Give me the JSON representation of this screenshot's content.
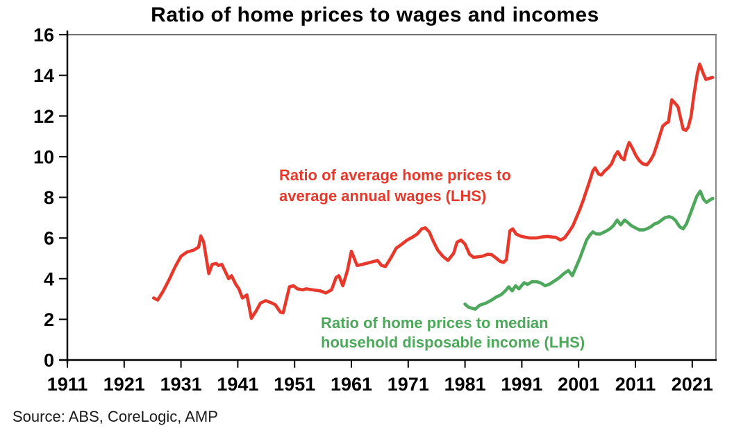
{
  "title": "Ratio of home prices to wages and incomes",
  "source": "Source: ABS, CoreLogic, AMP",
  "annotations": {
    "red": {
      "line1": "Ratio of average home prices to",
      "line2": "average annual wages (LHS)"
    },
    "green": {
      "line1": "Ratio of home prices to median",
      "line2": "household disposable income (LHS)"
    }
  },
  "colors": {
    "red_series": "#e6392c",
    "green_series": "#4da85c",
    "axis": "#000000",
    "frame_top": "#404040",
    "frame_right": "#8a8a8a",
    "text": "#000000"
  },
  "chart_data": {
    "type": "line",
    "title": "Ratio of home prices to wages and incomes",
    "xlabel": "",
    "ylabel": "",
    "grid": false,
    "legend_position": "inline-annotations",
    "x_axis": {
      "min": 1911,
      "max": 2025.3,
      "ticks": [
        1911,
        1921,
        1931,
        1941,
        1951,
        1961,
        1971,
        1981,
        1991,
        2001,
        2011,
        2021
      ]
    },
    "y_axis": {
      "min": 0,
      "max": 16,
      "ticks": [
        0,
        2,
        4,
        6,
        8,
        10,
        12,
        14,
        16
      ]
    },
    "series": [
      {
        "name": "Ratio of average home prices to average annual wages (LHS)",
        "color": "#e6392c",
        "points": [
          [
            1926.2,
            3.05
          ],
          [
            1926.9,
            2.95
          ],
          [
            1927.9,
            3.4
          ],
          [
            1929.0,
            4.0
          ],
          [
            1930.0,
            4.6
          ],
          [
            1931.0,
            5.1
          ],
          [
            1932.0,
            5.3
          ],
          [
            1933.2,
            5.4
          ],
          [
            1934.1,
            5.55
          ],
          [
            1934.5,
            6.1
          ],
          [
            1935.0,
            5.8
          ],
          [
            1935.9,
            4.25
          ],
          [
            1936.5,
            4.7
          ],
          [
            1937.2,
            4.75
          ],
          [
            1937.6,
            4.65
          ],
          [
            1938.2,
            4.7
          ],
          [
            1938.8,
            4.35
          ],
          [
            1939.4,
            4.0
          ],
          [
            1939.9,
            4.15
          ],
          [
            1940.6,
            3.75
          ],
          [
            1941.2,
            3.5
          ],
          [
            1941.8,
            3.05
          ],
          [
            1942.6,
            3.2
          ],
          [
            1943.4,
            2.05
          ],
          [
            1944.2,
            2.4
          ],
          [
            1945.0,
            2.8
          ],
          [
            1945.9,
            2.92
          ],
          [
            1947.0,
            2.8
          ],
          [
            1947.6,
            2.72
          ],
          [
            1948.5,
            2.35
          ],
          [
            1949.0,
            2.32
          ],
          [
            1950.1,
            3.6
          ],
          [
            1950.8,
            3.65
          ],
          [
            1951.5,
            3.5
          ],
          [
            1952.4,
            3.45
          ],
          [
            1953.0,
            3.5
          ],
          [
            1954.2,
            3.45
          ],
          [
            1955.5,
            3.4
          ],
          [
            1956.5,
            3.3
          ],
          [
            1957.5,
            3.45
          ],
          [
            1958.3,
            4.05
          ],
          [
            1958.8,
            4.15
          ],
          [
            1959.5,
            3.65
          ],
          [
            1960.3,
            4.4
          ],
          [
            1961.0,
            5.35
          ],
          [
            1962.0,
            4.65
          ],
          [
            1962.9,
            4.7
          ],
          [
            1964.0,
            4.78
          ],
          [
            1965.0,
            4.85
          ],
          [
            1965.6,
            4.9
          ],
          [
            1966.3,
            4.65
          ],
          [
            1967.0,
            4.6
          ],
          [
            1968.0,
            5.05
          ],
          [
            1968.9,
            5.5
          ],
          [
            1969.8,
            5.68
          ],
          [
            1970.8,
            5.9
          ],
          [
            1971.8,
            6.05
          ],
          [
            1972.6,
            6.2
          ],
          [
            1973.4,
            6.45
          ],
          [
            1974.0,
            6.5
          ],
          [
            1974.7,
            6.3
          ],
          [
            1975.4,
            5.85
          ],
          [
            1976.2,
            5.4
          ],
          [
            1977.1,
            5.1
          ],
          [
            1978.0,
            4.9
          ],
          [
            1979.0,
            5.25
          ],
          [
            1979.6,
            5.8
          ],
          [
            1980.3,
            5.9
          ],
          [
            1981.0,
            5.7
          ],
          [
            1981.8,
            5.2
          ],
          [
            1982.5,
            5.05
          ],
          [
            1984.0,
            5.1
          ],
          [
            1985.0,
            5.2
          ],
          [
            1985.7,
            5.18
          ],
          [
            1986.3,
            5.05
          ],
          [
            1987.2,
            4.85
          ],
          [
            1987.8,
            4.8
          ],
          [
            1988.3,
            4.95
          ],
          [
            1988.9,
            6.35
          ],
          [
            1989.4,
            6.45
          ],
          [
            1990.0,
            6.2
          ],
          [
            1990.7,
            6.1
          ],
          [
            1991.5,
            6.05
          ],
          [
            1992.4,
            6.0
          ],
          [
            1993.5,
            6.0
          ],
          [
            1994.5,
            6.05
          ],
          [
            1995.5,
            6.08
          ],
          [
            1996.3,
            6.05
          ],
          [
            1997.0,
            6.03
          ],
          [
            1997.8,
            5.9
          ],
          [
            1998.5,
            6.0
          ],
          [
            1999.3,
            6.3
          ],
          [
            2000.0,
            6.6
          ],
          [
            2000.6,
            7.0
          ],
          [
            2001.2,
            7.4
          ],
          [
            2001.8,
            7.85
          ],
          [
            2002.4,
            8.35
          ],
          [
            2003.0,
            8.85
          ],
          [
            2003.5,
            9.3
          ],
          [
            2003.9,
            9.45
          ],
          [
            2004.5,
            9.15
          ],
          [
            2005.0,
            9.1
          ],
          [
            2005.6,
            9.3
          ],
          [
            2006.2,
            9.45
          ],
          [
            2006.8,
            9.65
          ],
          [
            2007.4,
            10.05
          ],
          [
            2007.9,
            10.25
          ],
          [
            2008.5,
            9.95
          ],
          [
            2009.0,
            9.85
          ],
          [
            2009.4,
            10.3
          ],
          [
            2009.9,
            10.7
          ],
          [
            2010.5,
            10.4
          ],
          [
            2011.1,
            10.05
          ],
          [
            2011.7,
            9.8
          ],
          [
            2012.3,
            9.65
          ],
          [
            2013.0,
            9.6
          ],
          [
            2013.6,
            9.8
          ],
          [
            2014.2,
            10.1
          ],
          [
            2014.8,
            10.6
          ],
          [
            2015.3,
            11.05
          ],
          [
            2015.8,
            11.5
          ],
          [
            2016.4,
            11.65
          ],
          [
            2016.8,
            11.7
          ],
          [
            2017.4,
            12.8
          ],
          [
            2017.9,
            12.65
          ],
          [
            2018.5,
            12.45
          ],
          [
            2019.4,
            11.35
          ],
          [
            2019.9,
            11.3
          ],
          [
            2020.3,
            11.45
          ],
          [
            2020.8,
            12.0
          ],
          [
            2021.3,
            13.05
          ],
          [
            2021.9,
            14.1
          ],
          [
            2022.3,
            14.55
          ],
          [
            2023.0,
            14.05
          ],
          [
            2023.4,
            13.8
          ],
          [
            2024.0,
            13.85
          ],
          [
            2024.6,
            13.9
          ]
        ]
      },
      {
        "name": "Ratio of home prices to median household disposable income (LHS)",
        "color": "#4da85c",
        "points": [
          [
            1981.0,
            2.75
          ],
          [
            1981.6,
            2.6
          ],
          [
            1982.2,
            2.55
          ],
          [
            1982.8,
            2.5
          ],
          [
            1983.6,
            2.7
          ],
          [
            1984.7,
            2.8
          ],
          [
            1985.7,
            2.95
          ],
          [
            1986.5,
            3.1
          ],
          [
            1987.3,
            3.2
          ],
          [
            1988.1,
            3.4
          ],
          [
            1988.7,
            3.6
          ],
          [
            1989.3,
            3.4
          ],
          [
            1989.9,
            3.65
          ],
          [
            1990.5,
            3.5
          ],
          [
            1991.4,
            3.8
          ],
          [
            1992.0,
            3.72
          ],
          [
            1992.8,
            3.85
          ],
          [
            1993.6,
            3.85
          ],
          [
            1994.4,
            3.78
          ],
          [
            1995.1,
            3.65
          ],
          [
            1996.0,
            3.75
          ],
          [
            1996.8,
            3.9
          ],
          [
            1997.6,
            4.05
          ],
          [
            1998.4,
            4.25
          ],
          [
            1999.2,
            4.4
          ],
          [
            1999.9,
            4.15
          ],
          [
            2000.6,
            4.6
          ],
          [
            2001.2,
            5.0
          ],
          [
            2001.8,
            5.45
          ],
          [
            2002.4,
            5.9
          ],
          [
            2003.0,
            6.15
          ],
          [
            2003.5,
            6.3
          ],
          [
            2004.1,
            6.2
          ],
          [
            2004.8,
            6.2
          ],
          [
            2005.4,
            6.28
          ],
          [
            2005.9,
            6.35
          ],
          [
            2006.5,
            6.45
          ],
          [
            2007.1,
            6.6
          ],
          [
            2007.8,
            6.88
          ],
          [
            2008.4,
            6.65
          ],
          [
            2009.1,
            6.88
          ],
          [
            2009.7,
            6.75
          ],
          [
            2010.3,
            6.6
          ],
          [
            2011.0,
            6.5
          ],
          [
            2011.7,
            6.4
          ],
          [
            2012.4,
            6.4
          ],
          [
            2013.0,
            6.45
          ],
          [
            2013.7,
            6.55
          ],
          [
            2014.4,
            6.7
          ],
          [
            2015.0,
            6.75
          ],
          [
            2015.6,
            6.88
          ],
          [
            2016.2,
            7.0
          ],
          [
            2016.9,
            7.05
          ],
          [
            2017.5,
            7.0
          ],
          [
            2018.1,
            6.85
          ],
          [
            2018.8,
            6.55
          ],
          [
            2019.4,
            6.45
          ],
          [
            2020.0,
            6.7
          ],
          [
            2020.6,
            7.15
          ],
          [
            2021.2,
            7.6
          ],
          [
            2021.8,
            8.05
          ],
          [
            2022.4,
            8.3
          ],
          [
            2023.0,
            7.9
          ],
          [
            2023.5,
            7.75
          ],
          [
            2024.0,
            7.85
          ],
          [
            2024.6,
            7.95
          ]
        ]
      }
    ]
  }
}
